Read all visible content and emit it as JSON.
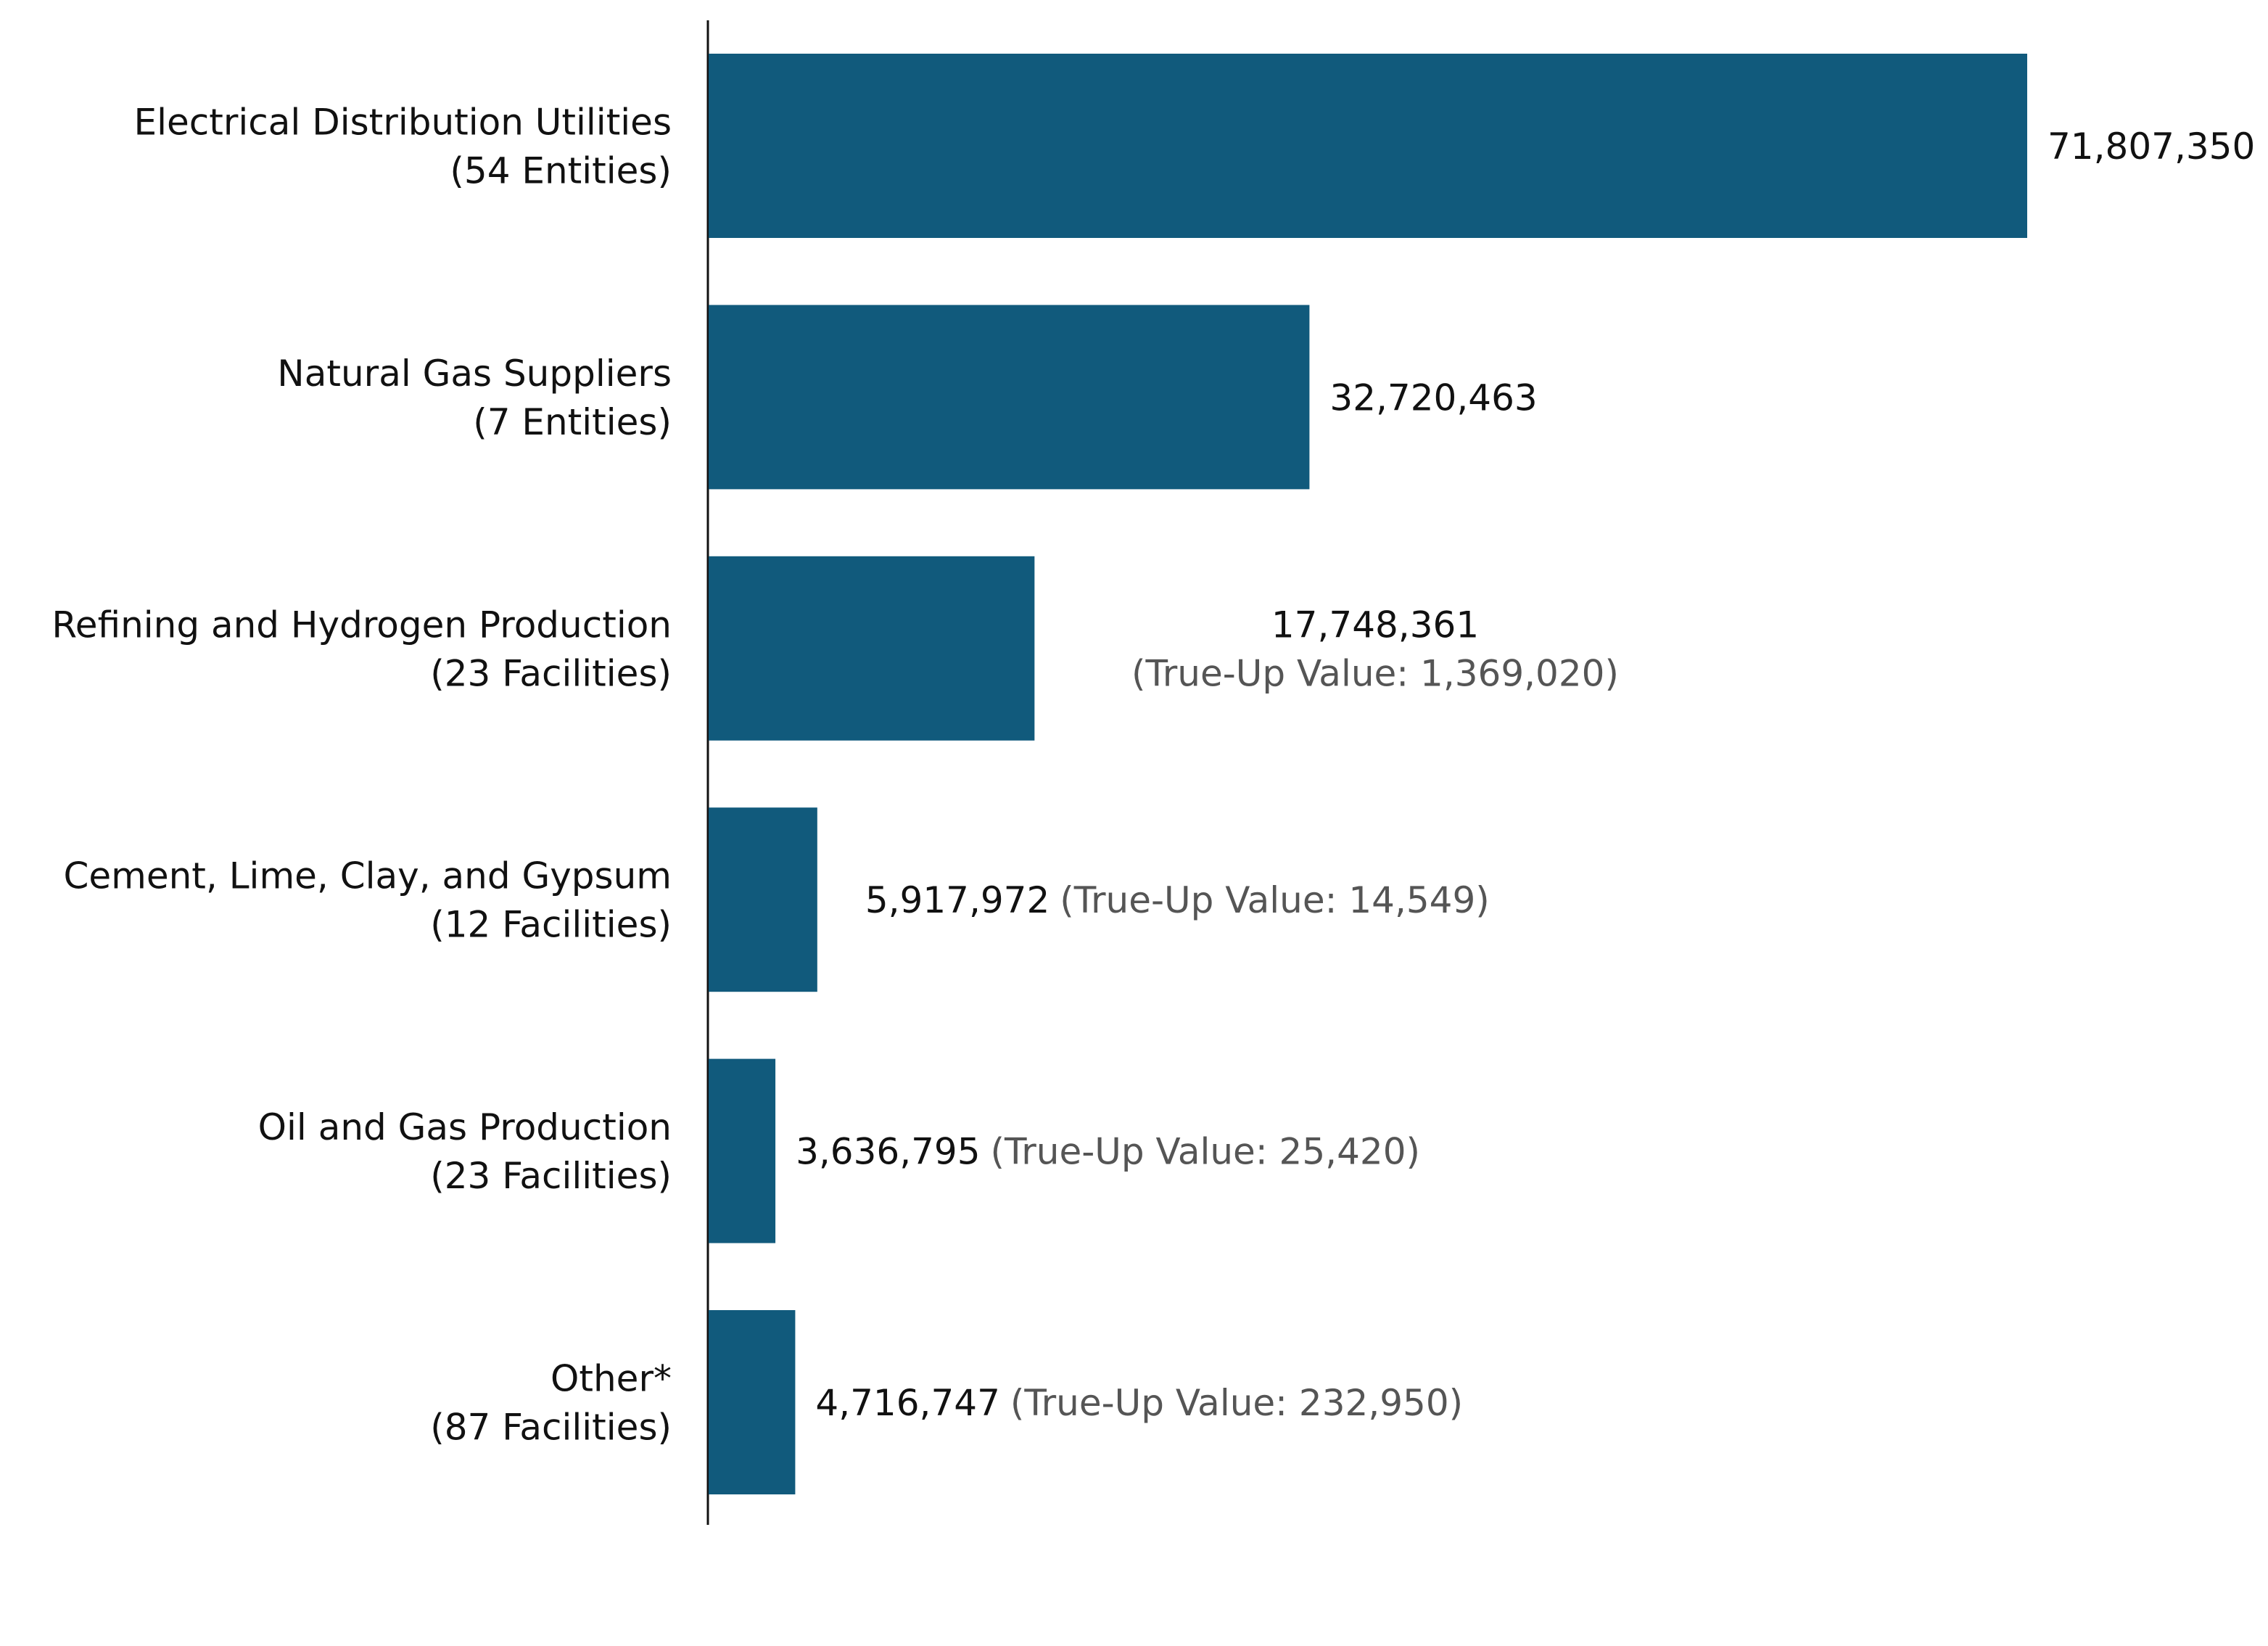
{
  "chart_data": {
    "type": "bar",
    "orientation": "horizontal",
    "title": "",
    "xlabel": "",
    "ylabel": "",
    "grid": false,
    "xlim": [
      0,
      71807350
    ],
    "bar_color": "#115a7c",
    "categories": [
      {
        "name": "Electrical Distribution Utilities",
        "count": "(54 Entities)"
      },
      {
        "name": "Natural Gas Suppliers",
        "count": "(7 Entities)"
      },
      {
        "name": "Refining and Hydrogen Production",
        "count": "(23 Facilities)"
      },
      {
        "name": "Cement, Lime, Clay, and Gypsum",
        "count": "(12 Facilities)"
      },
      {
        "name": "Oil and Gas Production",
        "count": "(23 Facilities)"
      },
      {
        "name": "Other*",
        "count": "(87 Facilities)"
      }
    ],
    "values": [
      71807350,
      32720463,
      17748361,
      5917972,
      3636795,
      4716747
    ],
    "value_labels": [
      "71,807,350",
      "32,720,463",
      "17,748,361",
      "5,917,972",
      "3,636,795",
      "4,716,747"
    ],
    "true_up_labels": [
      "",
      "",
      "(True-Up Value: 1,369,020)",
      "(True-Up Value: 14,549)",
      "(True-Up Value: 25,420)",
      "(True-Up Value: 232,950)"
    ],
    "true_up_values": [
      null,
      null,
      1369020,
      14549,
      25420,
      232950
    ]
  }
}
